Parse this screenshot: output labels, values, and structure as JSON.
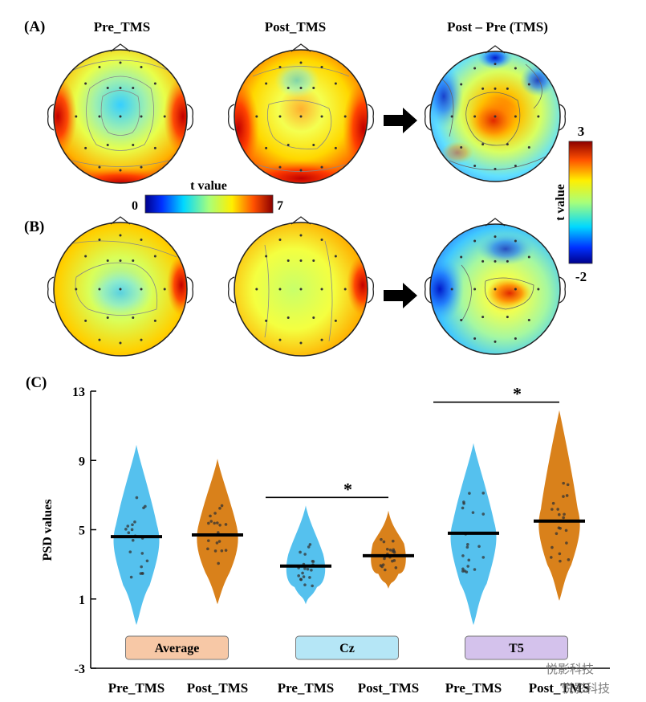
{
  "panels": {
    "a": "(A)",
    "b": "(B)",
    "c": "(C)",
    "headers": [
      "Pre_TMS",
      "Post_TMS",
      "Post – Pre (TMS)"
    ]
  },
  "colorbars": {
    "main": {
      "title": "t value",
      "min": "0",
      "max": "7"
    },
    "diff": {
      "title": "t value",
      "min": "-2",
      "max": "3"
    }
  },
  "colors": {
    "pre": "#55C1EE",
    "post": "#D9811B",
    "average_box": "#F7C8A6",
    "cz_box": "#B5E6F6",
    "t5_box": "#D4C2EC"
  },
  "watermark": {
    "text1": "悦影科技",
    "text2": "悦影科技"
  },
  "chart_data": {
    "type": "violin",
    "ylabel": "PSD  values",
    "ylim": [
      -3,
      13
    ],
    "yticks": [
      "13",
      "9",
      "5",
      "1",
      "-3"
    ],
    "groups": [
      {
        "label": "Average",
        "significant": false,
        "star": "",
        "series": [
          {
            "name": "Pre_TMS",
            "median": 4.6,
            "range": [
              -0.5,
              9.9
            ]
          },
          {
            "name": "Post_TMS",
            "median": 4.7,
            "range": [
              0.7,
              9.1
            ]
          }
        ]
      },
      {
        "label": "Cz",
        "significant": true,
        "star": "*",
        "series": [
          {
            "name": "Pre_TMS",
            "median": 2.9,
            "range": [
              0.7,
              6.4
            ]
          },
          {
            "name": "Post_TMS",
            "median": 3.5,
            "range": [
              1.6,
              6.1
            ]
          }
        ]
      },
      {
        "label": "T5",
        "significant": true,
        "star": "*",
        "series": [
          {
            "name": "Pre_TMS",
            "median": 4.8,
            "range": [
              -0.5,
              10.0
            ]
          },
          {
            "name": "Post_TMS",
            "median": 5.5,
            "range": [
              0.9,
              11.9
            ]
          }
        ]
      }
    ]
  }
}
